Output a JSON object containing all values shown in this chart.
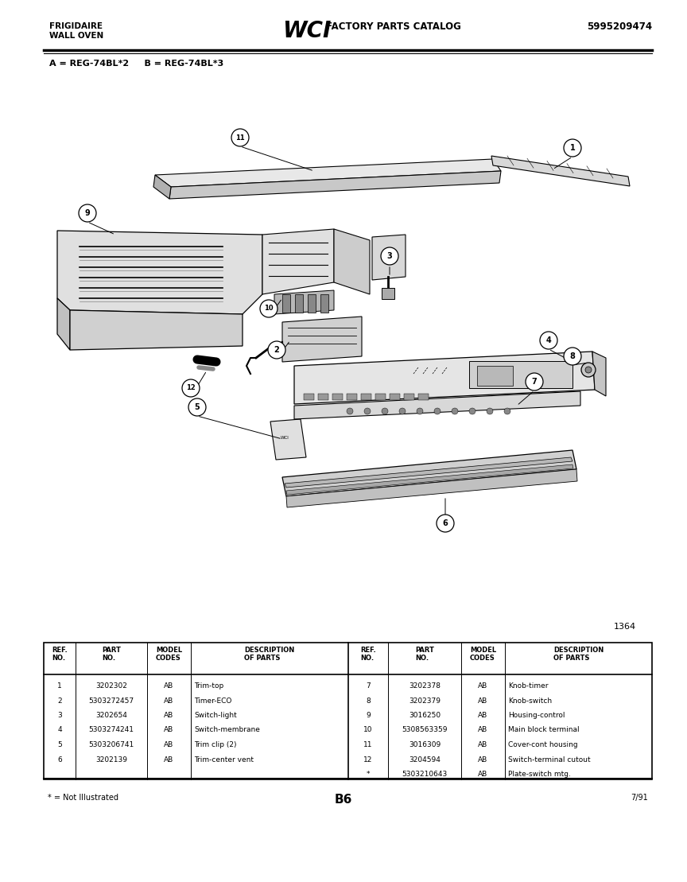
{
  "page_width": 8.64,
  "page_height": 11.09,
  "bg_color": "#ffffff",
  "header": {
    "brand_line1": "FRIGIDAIRE",
    "brand_line2": "WALL OVEN",
    "center_logo": "WCI",
    "center_text": "FACTORY PARTS CATALOG",
    "part_number": "5995209474"
  },
  "model_line": "A = REG-74BL*2     B = REG-74BL*3",
  "diagram_number": "1364",
  "footer_left": "* = Not Illustrated",
  "footer_center": "B6",
  "footer_right": "7/91",
  "left_table": [
    [
      "1",
      "3202302",
      "AB",
      "Trim-top"
    ],
    [
      "2",
      "5303272457",
      "AB",
      "Timer-ECO"
    ],
    [
      "3",
      "3202654",
      "AB",
      "Switch-light"
    ],
    [
      "4",
      "5303274241",
      "AB",
      "Switch-membrane"
    ],
    [
      "5",
      "5303206741",
      "AB",
      "Trim clip (2)"
    ],
    [
      "6",
      "3202139",
      "AB",
      "Trim-center vent"
    ]
  ],
  "right_table": [
    [
      "7",
      "3202378",
      "AB",
      "Knob-timer"
    ],
    [
      "8",
      "3202379",
      "AB",
      "Knob-switch"
    ],
    [
      "9",
      "3016250",
      "AB",
      "Housing-control"
    ],
    [
      "10",
      "5308563359",
      "AB",
      "Main block terminal"
    ],
    [
      "11",
      "3016309",
      "AB",
      "Cover-cont housing"
    ],
    [
      "12",
      "3204594",
      "AB",
      "Switch-terminal cutout"
    ],
    [
      "*",
      "5303210643",
      "AB",
      "Plate-switch mtg."
    ]
  ]
}
